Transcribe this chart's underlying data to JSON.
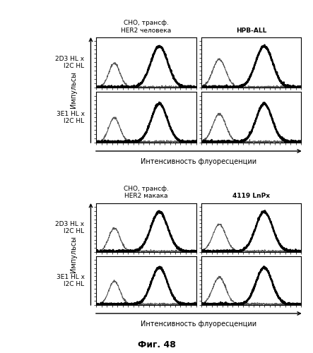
{
  "top_panel": {
    "col_labels": [
      "CHO, трансф.\nHER2 человека",
      "HPB-ALL"
    ],
    "row_labels": [
      "2D3 HL x\nI2C HL",
      "3E1 HL x\nI2C HL"
    ],
    "ylabel": "Импульсы",
    "xlabel": "Интенсивность флуоресценции",
    "col1_bold": false,
    "col2_bold": true
  },
  "bottom_panel": {
    "col_labels": [
      "CHO, трансф.\nHER2 макака",
      "4119 LnPx"
    ],
    "row_labels": [
      "2D3 HL x\nI2C HL",
      "3E1 HL x\nI2C HL"
    ],
    "ylabel": "Импульсы",
    "xlabel": "Интенсивность флуоресценции",
    "col1_bold": false,
    "col2_bold": true
  },
  "figure_label": "Фиг. 48",
  "bg_color": "#ffffff"
}
